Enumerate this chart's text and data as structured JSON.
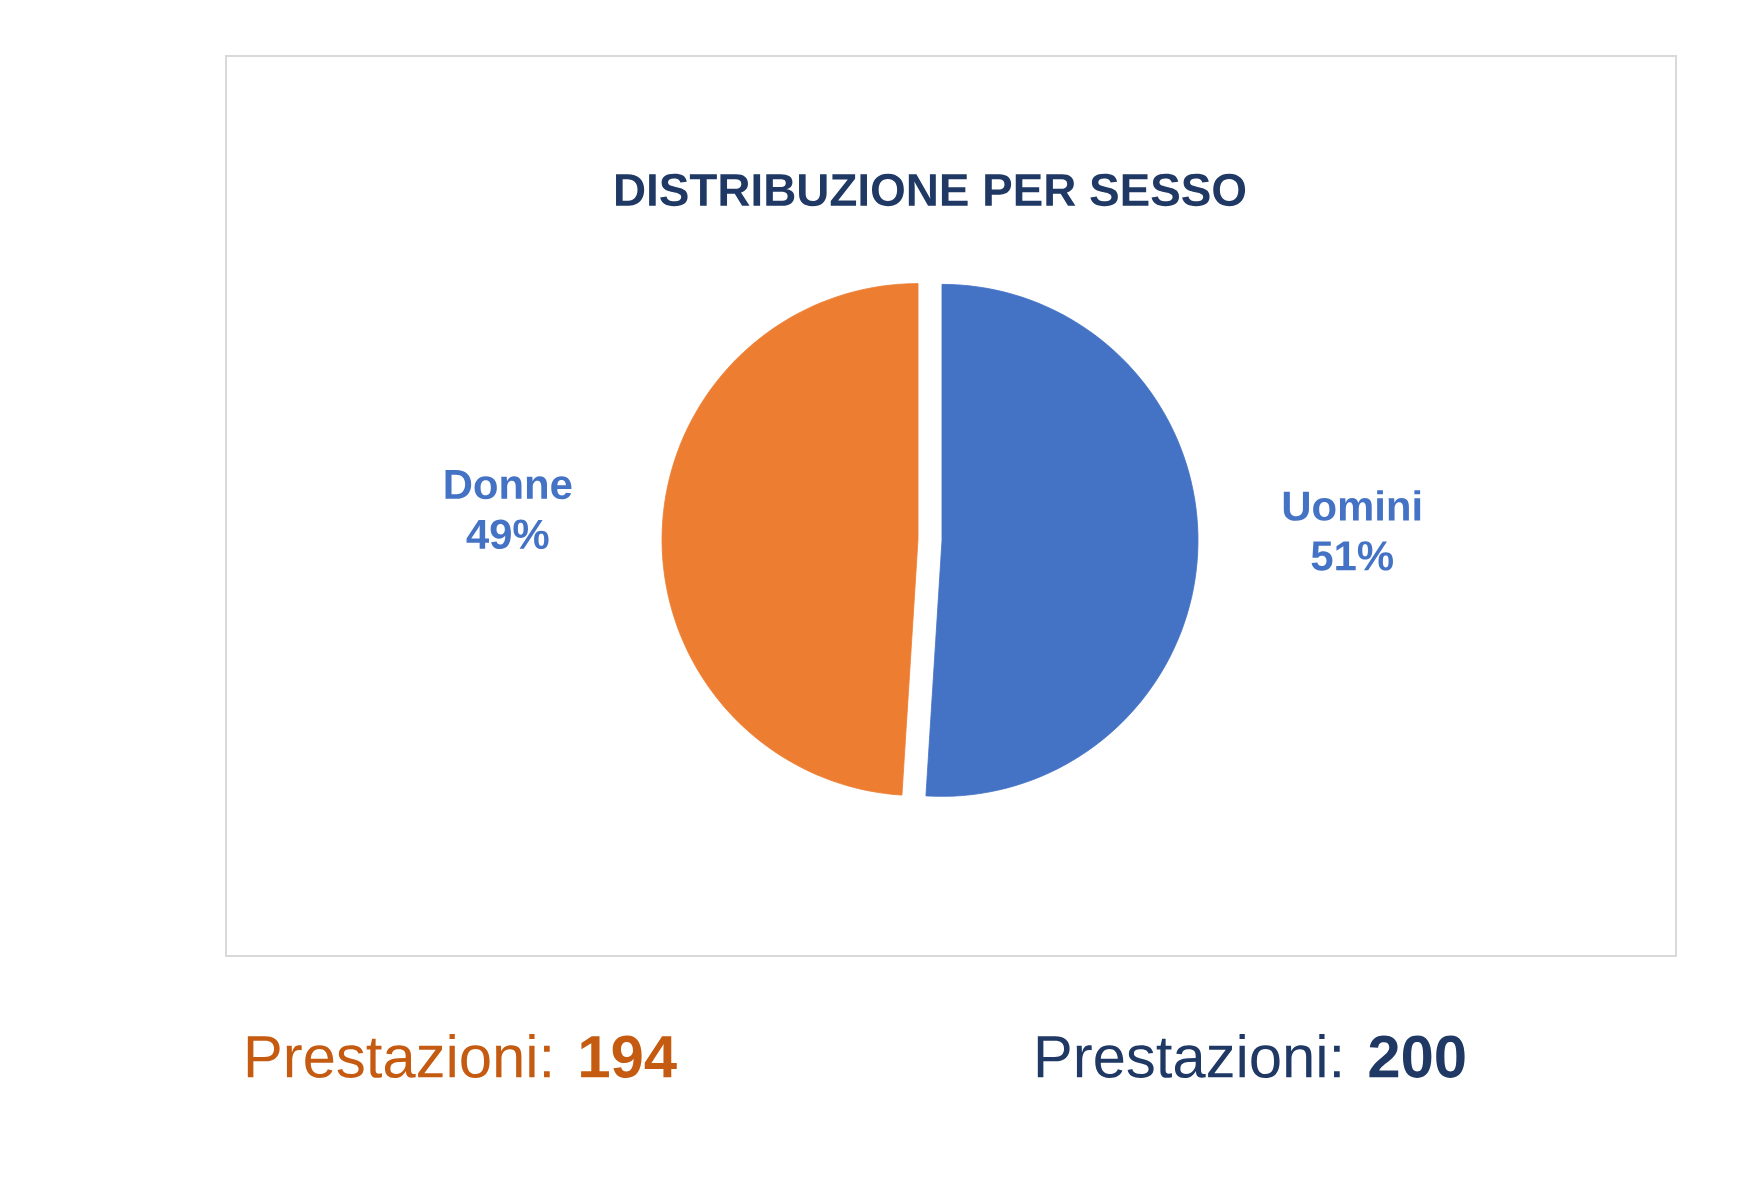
{
  "chart_data": {
    "type": "pie",
    "title": "DISTRIBUZIONE PER SESSO",
    "categories": [
      "Uomini",
      "Donne"
    ],
    "values": [
      51,
      49
    ],
    "colors": [
      "#4472c4",
      "#ed7d31"
    ],
    "value_labels": [
      "51%",
      "49%"
    ],
    "annotations": [
      "Prestazioni: **194**",
      "Prestazioni: **200**"
    ]
  }
}
